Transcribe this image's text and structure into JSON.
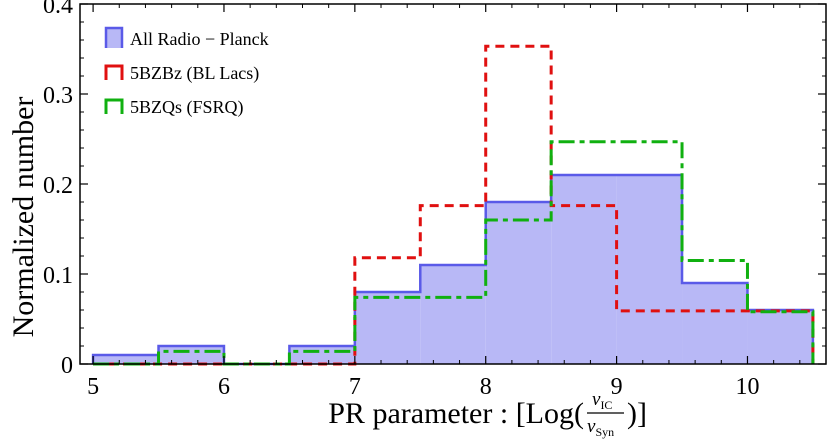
{
  "chart_data": {
    "type": "histogram",
    "title": "",
    "xlabel_prefix": "PR parameter : [Log(",
    "xlabel_numerator": "ν",
    "xlabel_numerator_sub": "IC",
    "xlabel_denominator": "ν",
    "xlabel_denominator_sub": "Syn",
    "xlabel_suffix": ")]",
    "ylabel": "Normalized number",
    "xlim": [
      4.9,
      10.6
    ],
    "ylim": [
      0,
      0.4
    ],
    "xticks": [
      5,
      6,
      7,
      8,
      9,
      10
    ],
    "yticks": [
      {
        "value": 0,
        "label": "0"
      },
      {
        "value": 0.1,
        "label": "0.1"
      },
      {
        "value": 0.2,
        "label": "0.2"
      },
      {
        "value": 0.3,
        "label": "0.3"
      },
      {
        "value": 0.4,
        "label": "0.4"
      }
    ],
    "bin_edges": [
      5.0,
      5.5,
      6.0,
      6.5,
      7.0,
      7.5,
      8.0,
      8.5,
      9.0,
      9.5,
      10.0,
      10.5
    ],
    "legend_position": "top-left",
    "series": [
      {
        "name": "All Radio − Planck",
        "style": "filled",
        "color": "#5a5ae8",
        "fill": "#b8b8f6",
        "values": [
          0.01,
          0.02,
          0.0,
          0.02,
          0.08,
          0.11,
          0.18,
          0.21,
          0.21,
          0.09,
          0.06
        ]
      },
      {
        "name": "5BZBz (BL Lacs)",
        "style": "dashed",
        "color": "#e01010",
        "values": [
          0.0,
          0.0,
          0.0,
          0.0,
          0.118,
          0.176,
          0.353,
          0.176,
          0.059,
          0.059,
          0.059
        ]
      },
      {
        "name": "5BZQs (FSRQ)",
        "style": "dashdot",
        "color": "#10b010",
        "values": [
          0.0,
          0.014,
          0.0,
          0.014,
          0.074,
          0.074,
          0.16,
          0.247,
          0.247,
          0.115,
          0.058
        ]
      }
    ]
  }
}
